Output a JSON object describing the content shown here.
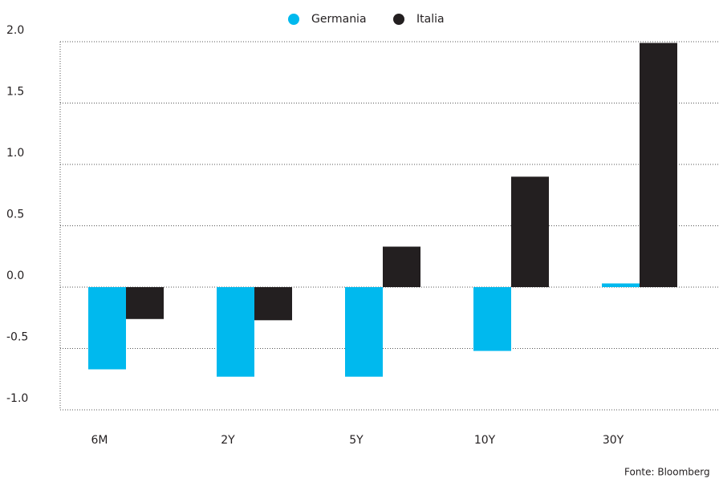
{
  "chart_data": {
    "type": "bar",
    "categories": [
      "6M",
      "2Y",
      "5Y",
      "10Y",
      "30Y"
    ],
    "series": [
      {
        "name": "Germania",
        "color": "#00b9ee",
        "values": [
          -0.67,
          -0.73,
          -0.73,
          -0.52,
          0.03
        ]
      },
      {
        "name": "Italia",
        "color": "#231f20",
        "values": [
          -0.26,
          -0.27,
          0.33,
          0.9,
          1.99
        ]
      }
    ],
    "ylim": [
      -1.0,
      2.0
    ],
    "yticks": [
      {
        "value": -1.0,
        "label": "-1.0"
      },
      -0.5,
      {
        "value": 0.0,
        "label": "0.0"
      },
      0.5,
      {
        "value": 1.0,
        "label": "1.0"
      },
      1.5,
      {
        "value": 2.0,
        "label": "2.0"
      }
    ],
    "grid": true,
    "source": "Fonte: Bloomberg"
  }
}
